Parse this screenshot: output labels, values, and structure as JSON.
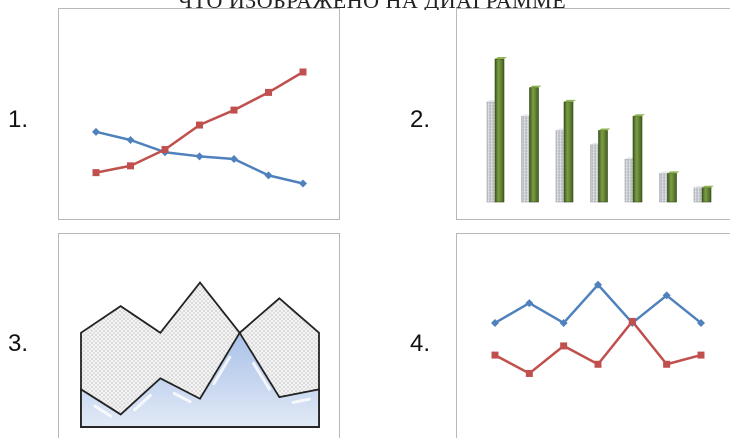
{
  "top_strip_text": "ЧТО ИЗОБРАЖЕНО НА ДИАГРАММЕ",
  "labels": {
    "n1": "1.",
    "n2": "2.",
    "n3": "3.",
    "n4": "4."
  },
  "colors": {
    "blue": "#4f81bd",
    "red": "#c0504d",
    "green": "#5e7e30",
    "green_dark": "#3f5a1c",
    "silver": "#d0d3d8",
    "area_fill": "#c7d6ee",
    "panel_border": "#b8b8b8"
  },
  "chart_data": [
    {
      "id": "1",
      "type": "line",
      "x": [
        1,
        2,
        3,
        4,
        5,
        6,
        7
      ],
      "ylim": [
        0,
        10
      ],
      "series": [
        {
          "color": "#4f81bd",
          "values": [
            5.6,
            5.0,
            4.1,
            3.8,
            3.6,
            2.4,
            1.8
          ]
        },
        {
          "color": "#c0504d",
          "values": [
            2.6,
            3.1,
            4.3,
            6.1,
            7.2,
            8.5,
            10.0
          ]
        }
      ]
    },
    {
      "id": "2",
      "type": "bar",
      "categories": [
        "1",
        "2",
        "3",
        "4",
        "5",
        "6",
        "7"
      ],
      "ylim": [
        0,
        10
      ],
      "series": [
        {
          "color": "#d0d3d8",
          "values": [
            7.0,
            6.0,
            5.0,
            4.0,
            3.0,
            2.0,
            1.0
          ]
        },
        {
          "color": "#5e7e30",
          "values": [
            10.0,
            8.0,
            7.0,
            5.0,
            6.0,
            2.0,
            1.0
          ]
        }
      ]
    },
    {
      "id": "3",
      "type": "area",
      "x": [
        1,
        2,
        3,
        4,
        5,
        6,
        7
      ],
      "ylim": [
        0,
        10
      ],
      "series": [
        {
          "color": "#e8e8e8",
          "values": [
            6.0,
            7.7,
            6.0,
            9.2,
            6.0,
            8.2,
            6.0
          ]
        },
        {
          "color": "#c7d6ee",
          "values": [
            2.4,
            0.8,
            3.1,
            1.8,
            6.0,
            1.9,
            2.4
          ]
        }
      ]
    },
    {
      "id": "4",
      "type": "line",
      "x": [
        1,
        2,
        3,
        4,
        5,
        6,
        7
      ],
      "ylim": [
        0,
        10
      ],
      "series": [
        {
          "color": "#4f81bd",
          "values": [
            6.8,
            8.1,
            6.8,
            9.3,
            6.8,
            8.6,
            6.8
          ]
        },
        {
          "color": "#c0504d",
          "values": [
            4.7,
            3.5,
            5.3,
            4.1,
            6.9,
            4.1,
            4.7
          ]
        }
      ]
    }
  ]
}
